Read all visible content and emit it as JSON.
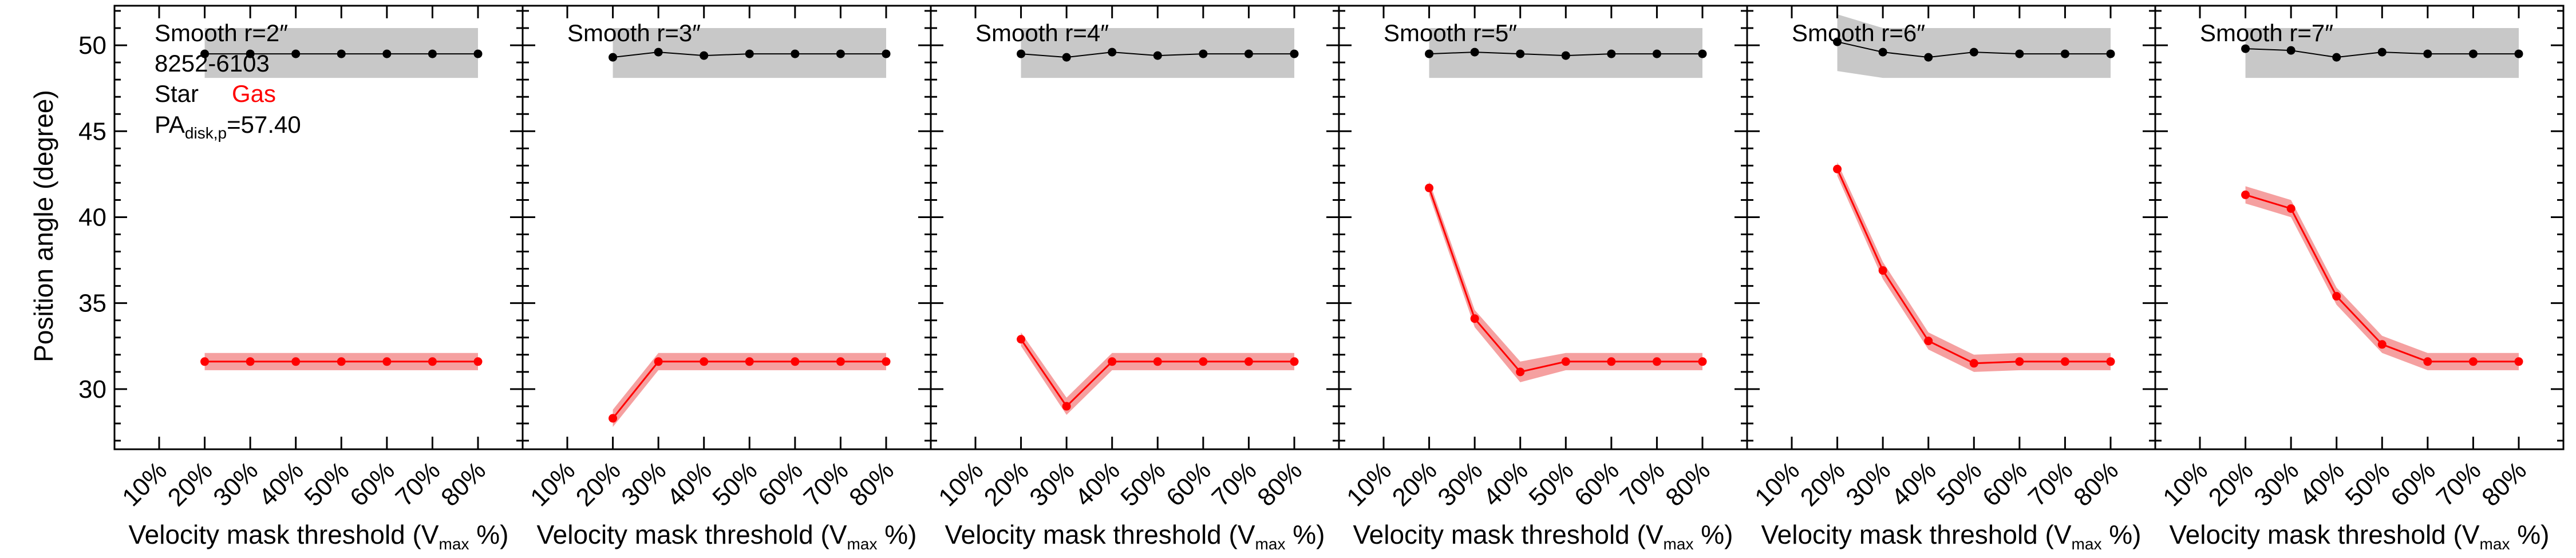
{
  "figure": {
    "ylabel": "Position angle (degree)",
    "xlabel_main": "Velocity mask threshold (V",
    "xlabel_sub": "max",
    "xlabel_end": " %)",
    "annotations": {
      "galaxy": "8252-6103",
      "star_label": "Star",
      "gas_label": "Gas",
      "pa_main": "PA",
      "pa_sub": "disk,p",
      "pa_value": "=57.40"
    }
  },
  "colors": {
    "star": "#000000",
    "gas": "#ff0000",
    "star_band": "#c8c8c8",
    "gas_band": "#f28080"
  },
  "chart_data": [
    {
      "type": "line",
      "title": "Smooth r=2″",
      "categories": [
        "10%",
        "20%",
        "30%",
        "40%",
        "50%",
        "60%",
        "70%",
        "80%"
      ],
      "ylim": [
        26.5,
        52.3
      ],
      "yticks": [
        "30",
        "35",
        "40",
        "45",
        "50"
      ],
      "series": [
        {
          "name": "Star",
          "x": [
            "20%",
            "30%",
            "40%",
            "50%",
            "60%",
            "70%",
            "80%"
          ],
          "values": [
            49.5,
            49.5,
            49.5,
            49.5,
            49.5,
            49.5,
            49.5
          ],
          "band_low": [
            48.1,
            48.1,
            48.1,
            48.1,
            48.1,
            48.1,
            48.1
          ],
          "band_high": [
            51.0,
            51.0,
            51.0,
            51.0,
            51.0,
            51.0,
            51.0
          ]
        },
        {
          "name": "Gas",
          "x": [
            "20%",
            "30%",
            "40%",
            "50%",
            "60%",
            "70%",
            "80%"
          ],
          "values": [
            31.6,
            31.6,
            31.6,
            31.6,
            31.6,
            31.6,
            31.6
          ],
          "band_low": [
            31.1,
            31.1,
            31.1,
            31.1,
            31.1,
            31.1,
            31.1
          ],
          "band_high": [
            32.1,
            32.1,
            32.1,
            32.1,
            32.1,
            32.1,
            32.1
          ]
        }
      ]
    },
    {
      "type": "line",
      "title": "Smooth r=3″",
      "categories": [
        "10%",
        "20%",
        "30%",
        "40%",
        "50%",
        "60%",
        "70%",
        "80%"
      ],
      "ylim": [
        26.5,
        52.3
      ],
      "series": [
        {
          "name": "Star",
          "x": [
            "20%",
            "30%",
            "40%",
            "50%",
            "60%",
            "70%",
            "80%"
          ],
          "values": [
            49.3,
            49.6,
            49.4,
            49.5,
            49.5,
            49.5,
            49.5
          ],
          "band_low": [
            48.1,
            48.1,
            48.1,
            48.1,
            48.1,
            48.1,
            48.1
          ],
          "band_high": [
            51.0,
            51.0,
            51.0,
            51.0,
            51.0,
            51.0,
            51.0
          ]
        },
        {
          "name": "Gas",
          "x": [
            "20%",
            "30%",
            "40%",
            "50%",
            "60%",
            "70%",
            "80%"
          ],
          "values": [
            28.3,
            31.6,
            31.6,
            31.6,
            31.6,
            31.6,
            31.6
          ],
          "band_low": [
            27.8,
            31.1,
            31.1,
            31.1,
            31.1,
            31.1,
            31.1
          ],
          "band_high": [
            28.8,
            32.1,
            32.1,
            32.1,
            32.1,
            32.1,
            32.1
          ]
        }
      ]
    },
    {
      "type": "line",
      "title": "Smooth r=4″",
      "categories": [
        "10%",
        "20%",
        "30%",
        "40%",
        "50%",
        "60%",
        "70%",
        "80%"
      ],
      "ylim": [
        26.5,
        52.3
      ],
      "series": [
        {
          "name": "Star",
          "x": [
            "20%",
            "30%",
            "40%",
            "50%",
            "60%",
            "70%",
            "80%"
          ],
          "values": [
            49.5,
            49.3,
            49.6,
            49.4,
            49.5,
            49.5,
            49.5
          ],
          "band_low": [
            48.1,
            48.1,
            48.1,
            48.1,
            48.1,
            48.1,
            48.1
          ],
          "band_high": [
            51.0,
            51.0,
            51.0,
            51.0,
            51.0,
            51.0,
            51.0
          ]
        },
        {
          "name": "Gas",
          "x": [
            "20%",
            "30%",
            "40%",
            "50%",
            "60%",
            "70%",
            "80%"
          ],
          "values": [
            32.9,
            29.0,
            31.6,
            31.6,
            31.6,
            31.6,
            31.6
          ],
          "band_low": [
            32.5,
            28.5,
            31.1,
            31.1,
            31.1,
            31.1,
            31.1
          ],
          "band_high": [
            33.3,
            29.5,
            32.1,
            32.1,
            32.1,
            32.1,
            32.1
          ]
        }
      ]
    },
    {
      "type": "line",
      "title": "Smooth r=5″",
      "categories": [
        "10%",
        "20%",
        "30%",
        "40%",
        "50%",
        "60%",
        "70%",
        "80%"
      ],
      "ylim": [
        26.5,
        52.3
      ],
      "series": [
        {
          "name": "Star",
          "x": [
            "20%",
            "30%",
            "40%",
            "50%",
            "60%",
            "70%",
            "80%"
          ],
          "values": [
            49.5,
            49.6,
            49.5,
            49.4,
            49.5,
            49.5,
            49.5
          ],
          "band_low": [
            48.1,
            48.1,
            48.1,
            48.1,
            48.1,
            48.1,
            48.1
          ],
          "band_high": [
            51.0,
            51.0,
            51.0,
            51.0,
            51.0,
            51.0,
            51.0
          ]
        },
        {
          "name": "Gas",
          "x": [
            "20%",
            "30%",
            "40%",
            "50%",
            "60%",
            "70%",
            "80%"
          ],
          "values": [
            41.7,
            34.1,
            31.0,
            31.6,
            31.6,
            31.6,
            31.6
          ],
          "band_low": [
            41.3,
            33.6,
            30.4,
            31.1,
            31.1,
            31.1,
            31.1
          ],
          "band_high": [
            42.1,
            34.6,
            31.6,
            32.1,
            32.1,
            32.1,
            32.1
          ]
        }
      ]
    },
    {
      "type": "line",
      "title": "Smooth r=6″",
      "categories": [
        "10%",
        "20%",
        "30%",
        "40%",
        "50%",
        "60%",
        "70%",
        "80%"
      ],
      "ylim": [
        26.5,
        52.3
      ],
      "series": [
        {
          "name": "Star",
          "x": [
            "20%",
            "30%",
            "40%",
            "50%",
            "60%",
            "70%",
            "80%"
          ],
          "values": [
            50.2,
            49.6,
            49.3,
            49.6,
            49.5,
            49.5,
            49.5
          ],
          "band_low": [
            48.5,
            48.1,
            48.1,
            48.1,
            48.1,
            48.1,
            48.1
          ],
          "band_high": [
            51.8,
            51.0,
            51.0,
            51.0,
            51.0,
            51.0,
            51.0
          ]
        },
        {
          "name": "Gas",
          "x": [
            "20%",
            "30%",
            "40%",
            "50%",
            "60%",
            "70%",
            "80%"
          ],
          "values": [
            42.8,
            36.9,
            32.8,
            31.5,
            31.6,
            31.6,
            31.6
          ],
          "band_low": [
            42.4,
            36.4,
            32.3,
            31.0,
            31.1,
            31.1,
            31.1
          ],
          "band_high": [
            43.2,
            37.4,
            33.3,
            32.0,
            32.1,
            32.1,
            32.1
          ]
        }
      ]
    },
    {
      "type": "line",
      "title": "Smooth r=7″",
      "categories": [
        "10%",
        "20%",
        "30%",
        "40%",
        "50%",
        "60%",
        "70%",
        "80%"
      ],
      "ylim": [
        26.5,
        52.3
      ],
      "series": [
        {
          "name": "Star",
          "x": [
            "20%",
            "30%",
            "40%",
            "50%",
            "60%",
            "70%",
            "80%"
          ],
          "values": [
            49.8,
            49.7,
            49.3,
            49.6,
            49.5,
            49.5,
            49.5
          ],
          "band_low": [
            48.1,
            48.1,
            48.1,
            48.1,
            48.1,
            48.1,
            48.1
          ],
          "band_high": [
            51.0,
            51.0,
            51.0,
            51.0,
            51.0,
            51.0,
            51.0
          ]
        },
        {
          "name": "Gas",
          "x": [
            "20%",
            "30%",
            "40%",
            "50%",
            "60%",
            "70%",
            "80%"
          ],
          "values": [
            41.3,
            40.5,
            35.4,
            32.6,
            31.6,
            31.6,
            31.6
          ],
          "band_low": [
            40.8,
            40.0,
            34.9,
            32.1,
            31.1,
            31.1,
            31.1
          ],
          "band_high": [
            41.8,
            41.0,
            35.9,
            33.1,
            32.1,
            32.1,
            32.1
          ]
        }
      ]
    }
  ]
}
